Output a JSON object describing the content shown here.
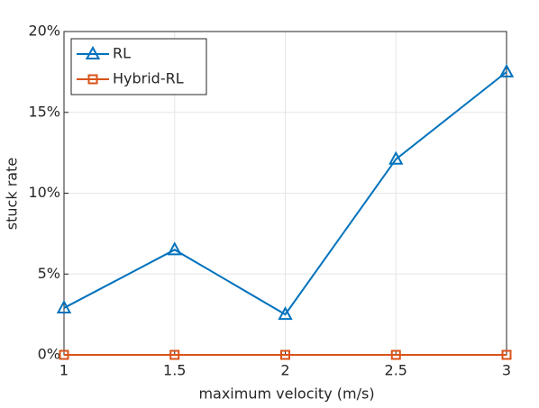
{
  "chart_data": {
    "type": "line",
    "xlabel": "maximum velocity (m/s)",
    "ylabel": "stuck rate",
    "x": [
      1,
      1.5,
      2,
      2.5,
      3
    ],
    "series": [
      {
        "name": "RL",
        "color": "#0072bd",
        "marker": "triangle",
        "values": [
          2.9,
          6.5,
          2.5,
          12.1,
          17.5
        ]
      },
      {
        "name": "Hybrid-RL",
        "color": "#d95319",
        "marker": "square",
        "values": [
          0,
          0,
          0,
          0,
          0
        ]
      }
    ],
    "xlim": [
      1,
      3
    ],
    "xticks": [
      1,
      1.5,
      2,
      2.5,
      3
    ],
    "ylim": [
      0,
      20
    ],
    "yticks": [
      {
        "value": 0,
        "label": "0%"
      },
      {
        "value": 5,
        "label": "5%"
      },
      {
        "value": 10,
        "label": "10%"
      },
      {
        "value": 15,
        "label": "15%"
      },
      {
        "value": 20,
        "label": "20%"
      }
    ],
    "grid": true,
    "legend": "upper left"
  }
}
